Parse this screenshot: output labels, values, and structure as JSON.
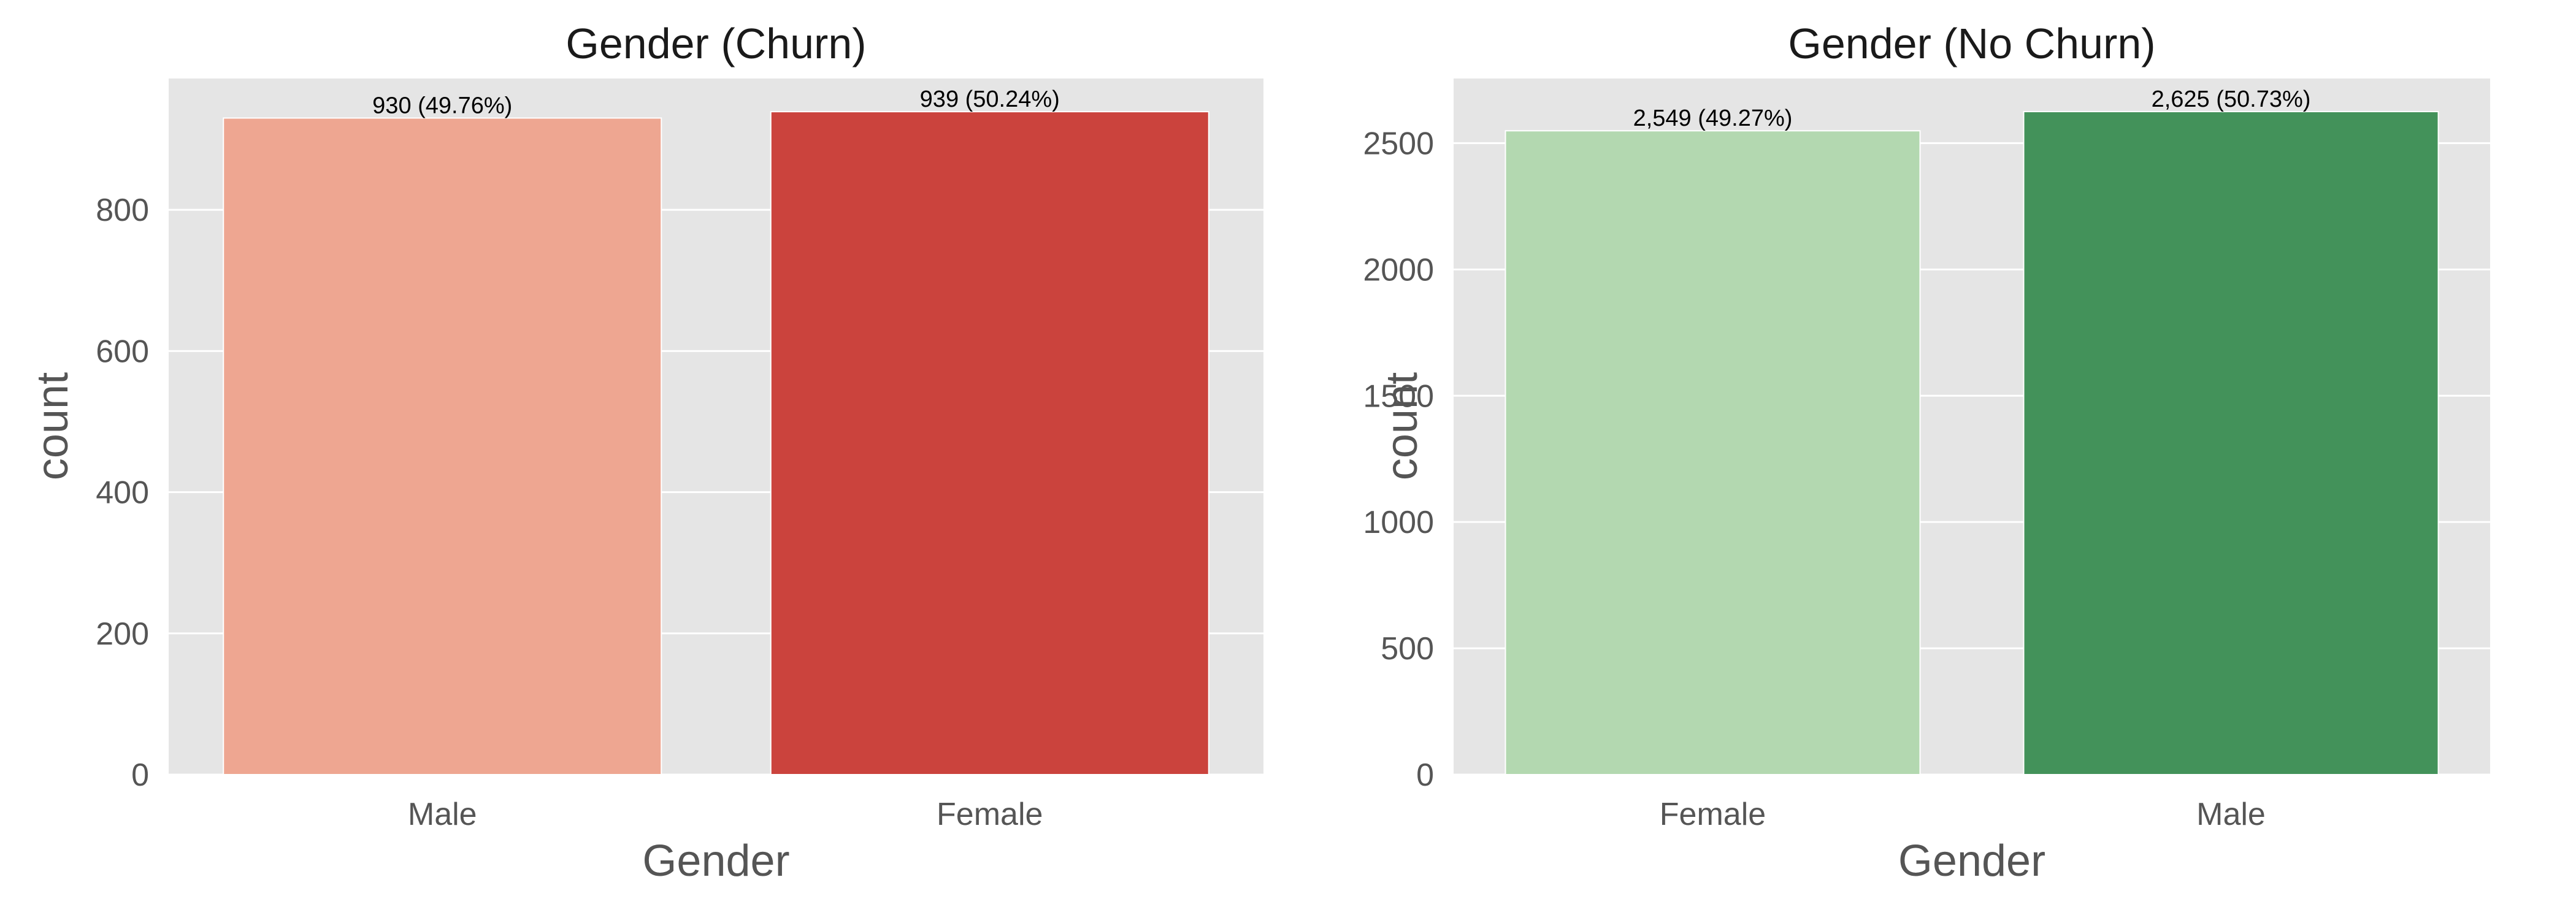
{
  "chart_data": [
    {
      "type": "bar",
      "title": "Gender (Churn)",
      "xlabel": "Gender",
      "ylabel": "count",
      "categories": [
        "Male",
        "Female"
      ],
      "values": [
        930,
        939
      ],
      "data_labels": [
        "930 (49.76%)",
        "939 (50.24%)"
      ],
      "colors": [
        "#eea691",
        "#cb433d"
      ],
      "ylim": [
        0,
        986
      ],
      "yticks": [
        0,
        200,
        400,
        600,
        800
      ],
      "grid": true
    },
    {
      "type": "bar",
      "title": "Gender (No Churn)",
      "xlabel": "Gender",
      "ylabel": "count",
      "categories": [
        "Female",
        "Male"
      ],
      "values": [
        2549,
        2625
      ],
      "data_labels": [
        "2,549 (49.27%)",
        "2,625 (50.73%)"
      ],
      "colors": [
        "#b3d8b0",
        "#43925a"
      ],
      "ylim": [
        0,
        2756
      ],
      "yticks": [
        0,
        500,
        1000,
        1500,
        2000,
        2500
      ],
      "grid": true
    }
  ],
  "style": {
    "plot_background": "#e5e5e5",
    "grid_color": "#ffffff",
    "tick_label_color": "#555555",
    "title_color": "#1a1a1a",
    "data_label_color": "#000000"
  }
}
